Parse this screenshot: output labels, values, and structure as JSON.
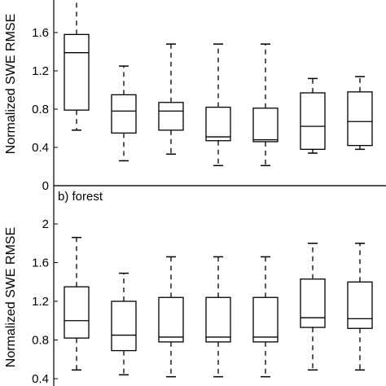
{
  "chart_data": [
    {
      "type": "box",
      "panel": "top",
      "title": "",
      "ylabel": "Normalized SWE RMSE",
      "ylim": [
        0,
        2.0
      ],
      "yticks": [
        "0",
        "0.4",
        "0.8",
        "1.2",
        "1.6"
      ],
      "yticks_values": [
        0,
        0.4,
        0.8,
        1.2,
        1.6
      ],
      "series": [
        {
          "whisker_low": 0.58,
          "q1": 0.79,
          "median": 1.39,
          "q3": 1.58,
          "whisker_high": 1.97
        },
        {
          "whisker_low": 0.26,
          "q1": 0.55,
          "median": 0.78,
          "q3": 0.95,
          "whisker_high": 1.25
        },
        {
          "whisker_low": 0.33,
          "q1": 0.58,
          "median": 0.78,
          "q3": 0.87,
          "whisker_high": 1.48
        },
        {
          "whisker_low": 0.21,
          "q1": 0.47,
          "median": 0.51,
          "q3": 0.82,
          "whisker_high": 1.48
        },
        {
          "whisker_low": 0.21,
          "q1": 0.46,
          "median": 0.48,
          "q3": 0.81,
          "whisker_high": 1.48
        },
        {
          "whisker_low": 0.34,
          "q1": 0.38,
          "median": 0.62,
          "q3": 0.97,
          "whisker_high": 1.12
        },
        {
          "whisker_low": 0.38,
          "q1": 0.42,
          "median": 0.67,
          "q3": 0.98,
          "whisker_high": 1.14
        }
      ]
    },
    {
      "type": "box",
      "panel": "bottom",
      "title": "b) forest",
      "ylabel": "Normalized SWE RMSE",
      "ylim": [
        0.4,
        2.2
      ],
      "yticks": [
        "0.4",
        "0.8",
        "1.2",
        "1.6",
        "2"
      ],
      "yticks_values": [
        0.4,
        0.8,
        1.2,
        1.6,
        2.0
      ],
      "series": [
        {
          "whisker_low": 0.49,
          "q1": 0.82,
          "median": 1.0,
          "q3": 1.35,
          "whisker_high": 1.86
        },
        {
          "whisker_low": 0.44,
          "q1": 0.69,
          "median": 0.85,
          "q3": 1.2,
          "whisker_high": 1.49
        },
        {
          "whisker_low": 0.42,
          "q1": 0.78,
          "median": 0.83,
          "q3": 1.24,
          "whisker_high": 1.66
        },
        {
          "whisker_low": 0.42,
          "q1": 0.78,
          "median": 0.83,
          "q3": 1.24,
          "whisker_high": 1.66
        },
        {
          "whisker_low": 0.42,
          "q1": 0.78,
          "median": 0.83,
          "q3": 1.24,
          "whisker_high": 1.66
        },
        {
          "whisker_low": 0.49,
          "q1": 0.93,
          "median": 1.03,
          "q3": 1.43,
          "whisker_high": 1.8
        },
        {
          "whisker_low": 0.49,
          "q1": 0.92,
          "median": 1.02,
          "q3": 1.4,
          "whisker_high": 1.8
        }
      ]
    }
  ]
}
